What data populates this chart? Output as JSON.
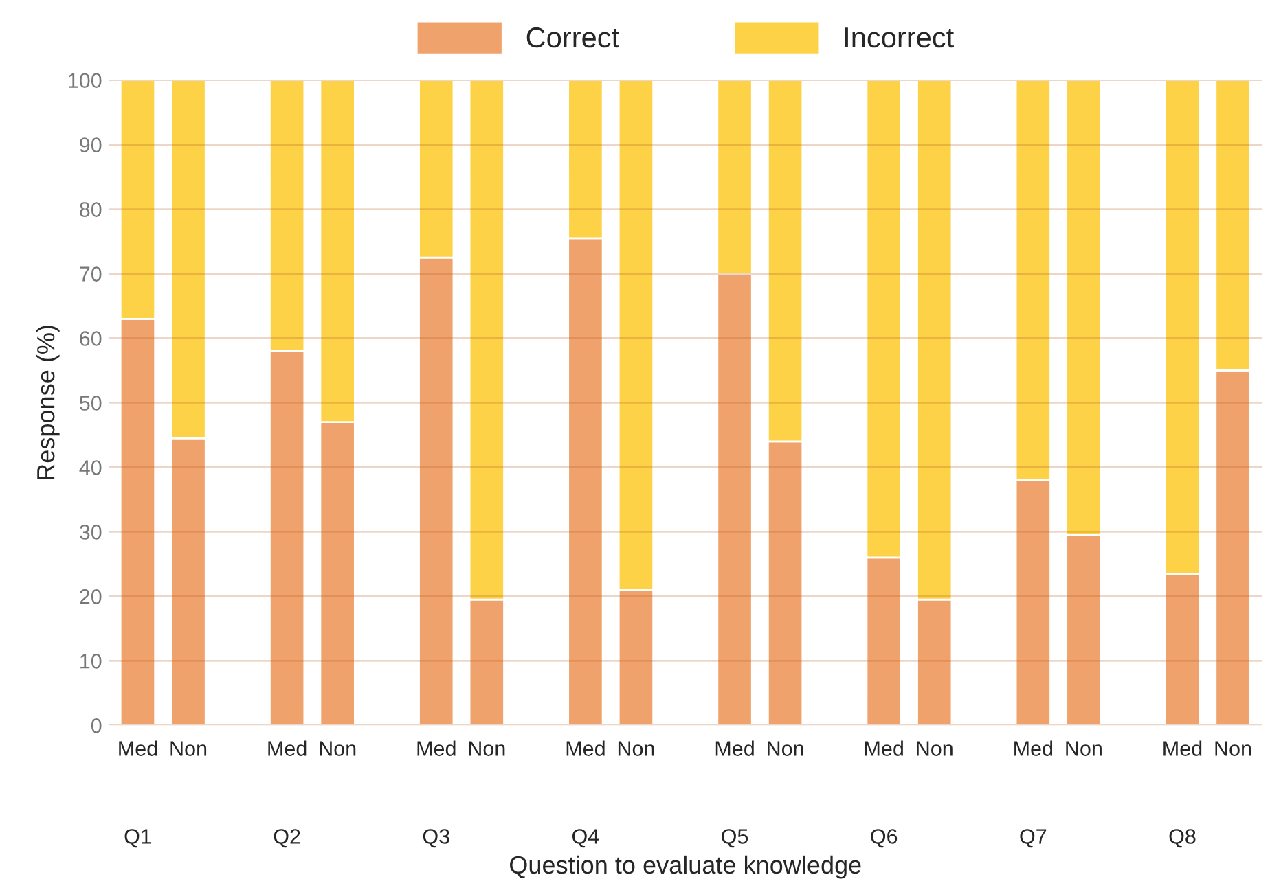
{
  "chart_data": {
    "type": "bar",
    "stacked": true,
    "xlabel": "Question to evaluate knowledge",
    "ylabel": "Response (%)",
    "categories": [
      "Med",
      "Non",
      "Med",
      "Non",
      "Med",
      "Non",
      "Med",
      "Non",
      "Med",
      "Non",
      "Med",
      "Non",
      "Med",
      "Non",
      "Med",
      "Non"
    ],
    "annotations": [
      "Q1",
      "Q2",
      "Q3",
      "Q4",
      "Q5",
      "Q6",
      "Q7",
      "Q8"
    ],
    "series": [
      {
        "name": "Correct",
        "color": "#f0a26c",
        "values": [
          63,
          44.5,
          58,
          47,
          72.5,
          19.5,
          75.5,
          21,
          70,
          44,
          26,
          19.5,
          38,
          29.5,
          23.5,
          55
        ]
      },
      {
        "name": "Incorrect",
        "color": "#fdd247",
        "values": [
          37,
          55.5,
          42,
          53,
          27.5,
          80.5,
          24.5,
          79,
          30,
          56,
          74,
          80.5,
          62,
          70.5,
          76.5,
          45
        ]
      }
    ],
    "ylim": [
      0,
      100
    ],
    "yticks": [
      0,
      10,
      20,
      30,
      40,
      50,
      60,
      70,
      80,
      90,
      100
    ],
    "grid": "y",
    "legend": "top"
  }
}
